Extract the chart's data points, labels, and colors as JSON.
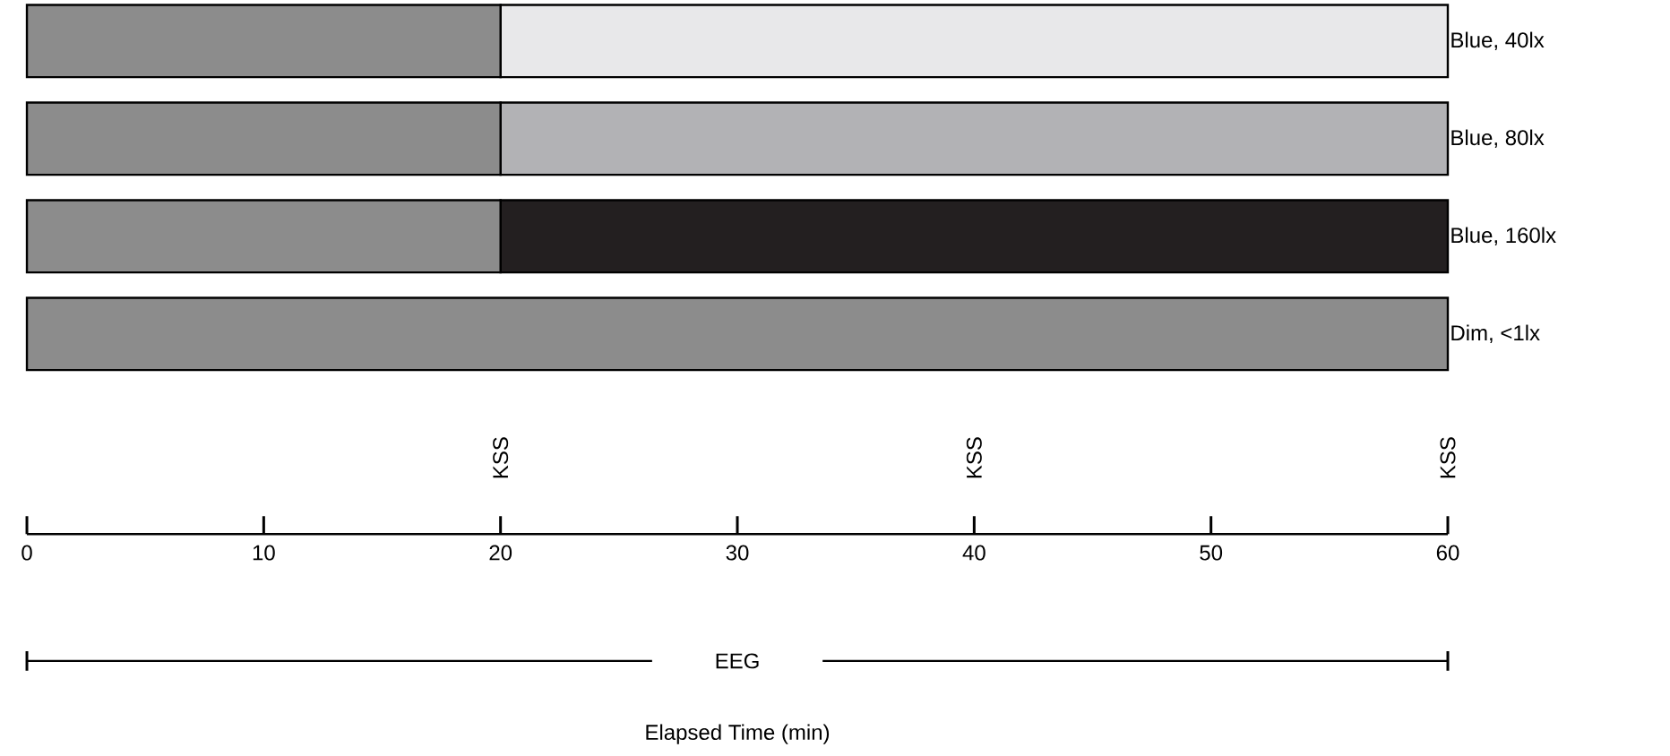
{
  "chart_data": {
    "type": "bar",
    "orientation": "horizontal",
    "stacked": true,
    "categories": [
      "Blue, 40lx",
      "Blue, 80lx",
      "Blue, 160lx",
      "Dim, <1lx"
    ],
    "series": [
      {
        "color": "#8c8c8c",
        "values": [
          20,
          20,
          20,
          60
        ]
      },
      {
        "colors": [
          "#e8e8ea",
          "#b2b2b5",
          "#231f20",
          "#ffffff"
        ],
        "values": [
          40,
          40,
          40,
          0
        ]
      }
    ],
    "xlim": [
      0,
      60
    ],
    "xticks": [
      0,
      10,
      20,
      30,
      40,
      50,
      60
    ],
    "annotations": [
      "KSS",
      "KSS",
      "KSS",
      "EEG",
      "Elapsed Time (min)"
    ],
    "grid": false
  }
}
